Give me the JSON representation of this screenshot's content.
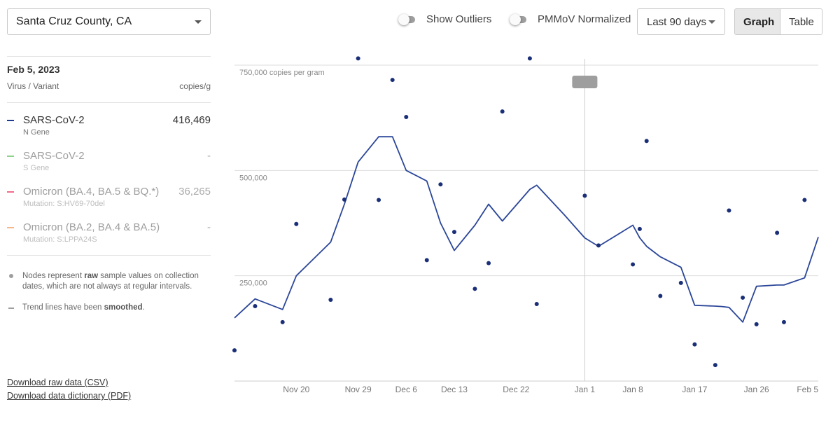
{
  "location": {
    "value": "Santa Cruz County, CA",
    "icon": "chevron-down-icon"
  },
  "toolbar": {
    "show_outliers": {
      "label": "Show Outliers",
      "on": false
    },
    "pmmov_normalized": {
      "label": "PMMoV Normalized",
      "on": false
    },
    "range": {
      "value": "Last 90 days"
    },
    "view": {
      "graph_label": "Graph",
      "table_label": "Table",
      "active": "Graph"
    }
  },
  "panel": {
    "date": "Feb 5, 2023",
    "col_left": "Virus / Variant",
    "col_right": "copies/g",
    "items": [
      {
        "name": "SARS-CoV-2",
        "sub": "N Gene",
        "value": "416,469",
        "color": "#1f3a93",
        "active": true
      },
      {
        "name": "SARS-CoV-2",
        "sub": "S Gene",
        "value": "-",
        "color": "#8fd18f",
        "active": false
      },
      {
        "name": "Omicron (BA.4, BA.5 & BQ.*)",
        "sub": "Mutation: S:HV69-70del",
        "value": "36,265",
        "color": "#f06c8c",
        "active": false
      },
      {
        "name": "Omicron (BA.2, BA.4 & BA.5)",
        "sub": "Mutation: S:LPPA24S",
        "value": "-",
        "color": "#f5b88a",
        "active": false
      }
    ],
    "notes": {
      "nodes_a": "Nodes represent ",
      "nodes_b": "raw",
      "nodes_c": " sample values on collection dates, which are not always at regular intervals.",
      "trend_a": "Trend lines have been ",
      "trend_b": "smoothed",
      "trend_c": "."
    },
    "links": {
      "csv": "Download raw data (CSV)",
      "dictionary": "Download data dictionary (PDF)"
    }
  },
  "chart_data": {
    "type": "line",
    "y_unit_label": "750,000 copies per gram",
    "y_ticks": [
      {
        "value": 250000,
        "label": "250,000"
      },
      {
        "value": 500000,
        "label": "500,000"
      },
      {
        "value": 750000,
        "label": "750,000 copies per gram"
      }
    ],
    "ylim": [
      0,
      765000
    ],
    "x_ticks": [
      {
        "day": 9,
        "label": "Nov 20"
      },
      {
        "day": 18,
        "label": "Nov 29"
      },
      {
        "day": 25,
        "label": "Dec 6"
      },
      {
        "day": 32,
        "label": "Dec 13"
      },
      {
        "day": 41,
        "label": "Dec 22"
      },
      {
        "day": 51,
        "label": "Jan 1"
      },
      {
        "day": 58,
        "label": "Jan 8"
      },
      {
        "day": 67,
        "label": "Jan 17"
      },
      {
        "day": 76,
        "label": "Jan 26"
      },
      {
        "day": 85,
        "label": "Feb 5"
      }
    ],
    "xlim": [
      0,
      85
    ],
    "hover_day": 51,
    "colors": {
      "line": "#2b4699",
      "points": "#1a2f78",
      "grid": "#dddddd",
      "hover": "#cccccc"
    },
    "series": [
      {
        "name": "SARS-CoV-2",
        "trend": [
          [
            0,
            150000
          ],
          [
            3,
            195000
          ],
          [
            7,
            170000
          ],
          [
            9,
            250000
          ],
          [
            14,
            330000
          ],
          [
            16,
            420000
          ],
          [
            18,
            520000
          ],
          [
            21,
            580000
          ],
          [
            23,
            580000
          ],
          [
            25,
            500000
          ],
          [
            28,
            475000
          ],
          [
            30,
            375000
          ],
          [
            32,
            310000
          ],
          [
            35,
            370000
          ],
          [
            37,
            420000
          ],
          [
            39,
            380000
          ],
          [
            43,
            455000
          ],
          [
            44,
            465000
          ],
          [
            48,
            395000
          ],
          [
            51,
            340000
          ],
          [
            53,
            320000
          ],
          [
            58,
            370000
          ],
          [
            59,
            340000
          ],
          [
            60,
            320000
          ],
          [
            62,
            295000
          ],
          [
            65,
            270000
          ],
          [
            67,
            180000
          ],
          [
            70,
            178000
          ],
          [
            71,
            177000
          ],
          [
            72,
            175000
          ],
          [
            74,
            140000
          ],
          [
            76,
            225000
          ],
          [
            79,
            228000
          ],
          [
            80,
            228000
          ],
          [
            83,
            245000
          ],
          [
            85,
            342000
          ]
        ],
        "points": [
          [
            0,
            73000
          ],
          [
            3,
            178000
          ],
          [
            7,
            140000
          ],
          [
            9,
            373000
          ],
          [
            14,
            193000
          ],
          [
            16,
            431000
          ],
          [
            18,
            766000
          ],
          [
            21,
            430000
          ],
          [
            23,
            715000
          ],
          [
            25,
            627000
          ],
          [
            28,
            287000
          ],
          [
            30,
            467000
          ],
          [
            32,
            354000
          ],
          [
            35,
            219000
          ],
          [
            37,
            280000
          ],
          [
            39,
            640000
          ],
          [
            43,
            766000
          ],
          [
            44,
            183000
          ],
          [
            51,
            440000
          ],
          [
            53,
            322000
          ],
          [
            58,
            277000
          ],
          [
            59,
            361000
          ],
          [
            60,
            570000
          ],
          [
            62,
            202000
          ],
          [
            65,
            233000
          ],
          [
            67,
            87000
          ],
          [
            70,
            38000
          ],
          [
            72,
            405000
          ],
          [
            74,
            198000
          ],
          [
            76,
            135000
          ],
          [
            79,
            352000
          ],
          [
            80,
            140000
          ],
          [
            83,
            430000
          ]
        ]
      }
    ]
  }
}
